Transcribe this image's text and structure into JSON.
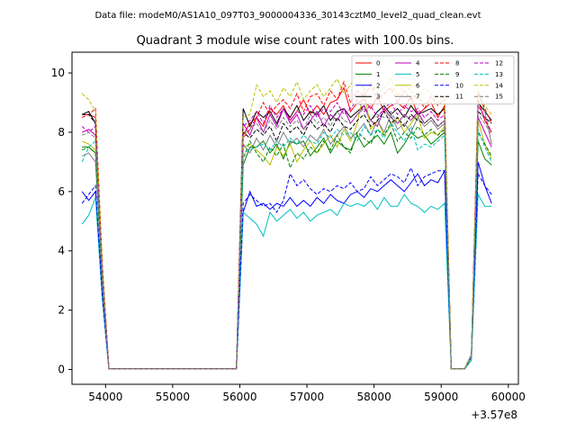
{
  "suptitle": "Data file: modeM0/AS1A10_097T03_9000004336_30143cztM0_level2_quad_clean.evt",
  "chart_data": {
    "type": "line",
    "title": "Quadrant 3 module wise count rates with 100.0s bins.",
    "xlabel": "",
    "ylabel": "",
    "offset_label": "+3.57e8",
    "xlim": [
      53500,
      60150
    ],
    "ylim": [
      -0.5,
      10.7
    ],
    "xticks": [
      54000,
      55000,
      56000,
      57000,
      58000,
      59000,
      60000
    ],
    "xtick_labels": [
      "54000",
      "55000",
      "56000",
      "57000",
      "58000",
      "59000",
      "60000"
    ],
    "yticks": [
      0,
      2,
      4,
      6,
      8,
      10
    ],
    "ytick_labels": [
      "0",
      "2",
      "4",
      "6",
      "8",
      "10"
    ],
    "legend_location": "top-right",
    "x": [
      53650,
      53750,
      53850,
      53950,
      54050,
      54150,
      54250,
      54350,
      54450,
      54550,
      54650,
      54750,
      54850,
      54950,
      55050,
      55150,
      55250,
      55350,
      55450,
      55550,
      55650,
      55750,
      55850,
      55950,
      56050,
      56150,
      56250,
      56350,
      56450,
      56550,
      56650,
      56750,
      56850,
      56950,
      57050,
      57150,
      57250,
      57350,
      57450,
      57550,
      57650,
      57750,
      57850,
      57950,
      58050,
      58150,
      58250,
      58350,
      58450,
      58550,
      58650,
      58750,
      58850,
      58950,
      59050,
      59150,
      59250,
      59350,
      59450,
      59550,
      59650,
      59750
    ],
    "series": [
      {
        "name": "0",
        "color": "#ff0000",
        "dash": "solid",
        "values": [
          8.6,
          8.6,
          8.5,
          3.5,
          0.02,
          0.02,
          0.02,
          0.02,
          0.02,
          0.02,
          0.02,
          0.02,
          0.02,
          0.02,
          0.02,
          0.02,
          0.02,
          0.02,
          0.02,
          0.02,
          0.02,
          0.02,
          0.02,
          0.02,
          7.9,
          8.3,
          8.5,
          8.2,
          8.8,
          8.6,
          8.9,
          8.4,
          8.7,
          9.1,
          8.6,
          8.9,
          8.6,
          9.0,
          9.1,
          9.5,
          8.7,
          9.0,
          9.1,
          8.8,
          9.2,
          8.7,
          8.9,
          9.0,
          8.8,
          9.2,
          8.6,
          8.8,
          9.0,
          8.5,
          8.9,
          0.02,
          0.02,
          0.02,
          0.5,
          9.1,
          8.4,
          8.0
        ]
      },
      {
        "name": "1",
        "color": "#008000",
        "dash": "solid",
        "values": [
          7.5,
          7.5,
          7.3,
          3.0,
          0.02,
          0.02,
          0.02,
          0.02,
          0.02,
          0.02,
          0.02,
          0.02,
          0.02,
          0.02,
          0.02,
          0.02,
          0.02,
          0.02,
          0.02,
          0.02,
          0.02,
          0.02,
          0.02,
          0.02,
          6.9,
          7.5,
          7.5,
          7.7,
          7.3,
          7.6,
          7.1,
          7.7,
          7.6,
          7.7,
          7.2,
          7.5,
          7.8,
          7.3,
          7.7,
          7.5,
          7.4,
          7.9,
          7.5,
          7.7,
          7.9,
          7.6,
          8.0,
          7.3,
          7.6,
          8.0,
          7.8,
          7.9,
          7.6,
          7.8,
          8.0,
          0.02,
          0.02,
          0.02,
          0.4,
          7.7,
          7.1,
          6.9
        ]
      },
      {
        "name": "2",
        "color": "#0000ff",
        "dash": "solid",
        "values": [
          6.0,
          5.7,
          6.0,
          2.5,
          0.02,
          0.02,
          0.02,
          0.02,
          0.02,
          0.02,
          0.02,
          0.02,
          0.02,
          0.02,
          0.02,
          0.02,
          0.02,
          0.02,
          0.02,
          0.02,
          0.02,
          0.02,
          0.02,
          0.02,
          5.3,
          6.0,
          5.5,
          5.6,
          5.4,
          5.6,
          5.5,
          5.8,
          5.5,
          5.7,
          5.5,
          5.8,
          5.6,
          5.9,
          5.7,
          5.6,
          5.9,
          6.0,
          5.8,
          6.1,
          6.0,
          6.2,
          6.4,
          6.2,
          6.0,
          6.3,
          6.6,
          6.2,
          6.4,
          6.3,
          6.7,
          0.02,
          0.02,
          0.02,
          0.4,
          7.0,
          6.2,
          5.6
        ]
      },
      {
        "name": "3",
        "color": "#000000",
        "dash": "solid",
        "values": [
          8.6,
          8.7,
          8.3,
          3.4,
          0.02,
          0.02,
          0.02,
          0.02,
          0.02,
          0.02,
          0.02,
          0.02,
          0.02,
          0.02,
          0.02,
          0.02,
          0.02,
          0.02,
          0.02,
          0.02,
          0.02,
          0.02,
          0.02,
          0.02,
          8.8,
          8.2,
          8.7,
          8.5,
          8.7,
          8.3,
          8.8,
          8.5,
          8.9,
          8.4,
          8.7,
          8.6,
          8.9,
          8.4,
          8.7,
          8.8,
          8.5,
          8.7,
          8.9,
          8.4,
          8.7,
          8.9,
          8.6,
          8.8,
          8.5,
          8.9,
          8.6,
          8.7,
          8.8,
          8.6,
          8.8,
          0.02,
          0.02,
          0.02,
          0.5,
          9.0,
          8.7,
          8.4
        ]
      },
      {
        "name": "4",
        "color": "#bf00bf",
        "dash": "solid",
        "values": [
          8.0,
          8.1,
          7.9,
          3.2,
          0.02,
          0.02,
          0.02,
          0.02,
          0.02,
          0.02,
          0.02,
          0.02,
          0.02,
          0.02,
          0.02,
          0.02,
          0.02,
          0.02,
          0.02,
          0.02,
          0.02,
          0.02,
          0.02,
          0.02,
          8.3,
          7.9,
          8.5,
          8.0,
          8.6,
          8.2,
          8.8,
          8.3,
          8.6,
          8.1,
          8.4,
          8.7,
          8.2,
          8.6,
          8.4,
          8.8,
          8.3,
          8.6,
          8.9,
          8.4,
          8.2,
          8.8,
          8.5,
          8.3,
          8.6,
          8.4,
          8.7,
          8.3,
          8.5,
          8.2,
          8.4,
          0.02,
          0.02,
          0.02,
          0.4,
          8.5,
          8.0,
          7.5
        ]
      },
      {
        "name": "5",
        "color": "#00bfbf",
        "dash": "solid",
        "values": [
          4.9,
          5.2,
          5.8,
          2.4,
          0.02,
          0.02,
          0.02,
          0.02,
          0.02,
          0.02,
          0.02,
          0.02,
          0.02,
          0.02,
          0.02,
          0.02,
          0.02,
          0.02,
          0.02,
          0.02,
          0.02,
          0.02,
          0.02,
          0.02,
          5.3,
          5.1,
          4.9,
          4.5,
          5.3,
          5.0,
          5.2,
          5.4,
          5.1,
          5.3,
          5.0,
          5.2,
          5.3,
          5.4,
          5.2,
          5.6,
          5.5,
          5.6,
          5.5,
          5.7,
          5.4,
          5.8,
          5.5,
          5.5,
          5.9,
          5.6,
          5.5,
          5.3,
          5.5,
          5.4,
          5.6,
          0.02,
          0.02,
          0.02,
          0.3,
          5.9,
          5.5,
          5.5
        ]
      },
      {
        "name": "6",
        "color": "#bfbf00",
        "dash": "solid",
        "values": [
          7.7,
          7.6,
          7.4,
          3.0,
          0.02,
          0.02,
          0.02,
          0.02,
          0.02,
          0.02,
          0.02,
          0.02,
          0.02,
          0.02,
          0.02,
          0.02,
          0.02,
          0.02,
          0.02,
          0.02,
          0.02,
          0.02,
          0.02,
          0.02,
          7.5,
          7.6,
          7.4,
          7.2,
          6.9,
          7.5,
          7.2,
          7.6,
          7.0,
          7.4,
          7.7,
          7.3,
          7.6,
          7.9,
          7.5,
          8.1,
          7.7,
          8.3,
          9.4,
          8.1,
          8.4,
          7.9,
          8.2,
          8.5,
          8.0,
          8.3,
          8.6,
          7.8,
          8.0,
          7.9,
          8.2,
          0.02,
          0.02,
          0.02,
          0.4,
          8.4,
          7.6,
          7.1
        ]
      },
      {
        "name": "7",
        "color": "#7f7f7f",
        "dash": "solid",
        "values": [
          7.2,
          7.3,
          7.0,
          2.9,
          0.02,
          0.02,
          0.02,
          0.02,
          0.02,
          0.02,
          0.02,
          0.02,
          0.02,
          0.02,
          0.02,
          0.02,
          0.02,
          0.02,
          0.02,
          0.02,
          0.02,
          0.02,
          0.02,
          0.02,
          7.6,
          7.3,
          7.8,
          7.4,
          7.9,
          7.5,
          8.0,
          7.6,
          7.8,
          7.5,
          7.9,
          7.7,
          8.1,
          7.6,
          7.9,
          8.2,
          7.8,
          8.0,
          8.3,
          7.9,
          8.4,
          8.0,
          8.6,
          8.1,
          8.3,
          8.0,
          8.5,
          8.2,
          8.4,
          8.1,
          8.3,
          0.02,
          0.02,
          0.02,
          0.4,
          9.4,
          8.7,
          7.6
        ]
      },
      {
        "name": "8",
        "color": "#ff0000",
        "dash": "dashed",
        "values": [
          8.5,
          8.6,
          8.8,
          3.6,
          0.02,
          0.02,
          0.02,
          0.02,
          0.02,
          0.02,
          0.02,
          0.02,
          0.02,
          0.02,
          0.02,
          0.02,
          0.02,
          0.02,
          0.02,
          0.02,
          0.02,
          0.02,
          0.02,
          0.02,
          7.8,
          8.1,
          8.5,
          9.0,
          8.6,
          8.9,
          9.1,
          8.8,
          9.3,
          8.7,
          9.2,
          9.3,
          8.9,
          9.4,
          9.1,
          9.7,
          9.0,
          9.4,
          9.2,
          9.6,
          9.1,
          9.3,
          9.5,
          9.0,
          9.4,
          9.1,
          9.3,
          8.8,
          9.2,
          8.9,
          9.1,
          0.02,
          0.02,
          0.02,
          0.5,
          9.3,
          8.8,
          8.3
        ]
      },
      {
        "name": "9",
        "color": "#008000",
        "dash": "dashed",
        "values": [
          7.4,
          7.5,
          7.3,
          3.0,
          0.02,
          0.02,
          0.02,
          0.02,
          0.02,
          0.02,
          0.02,
          0.02,
          0.02,
          0.02,
          0.02,
          0.02,
          0.02,
          0.02,
          0.02,
          0.02,
          0.02,
          0.02,
          0.02,
          0.02,
          7.1,
          7.7,
          7.3,
          7.0,
          7.5,
          7.2,
          7.6,
          6.8,
          7.3,
          7.1,
          7.5,
          7.3,
          7.7,
          7.4,
          7.9,
          7.5,
          7.3,
          8.0,
          7.8,
          7.6,
          8.1,
          7.9,
          8.3,
          7.7,
          8.0,
          7.8,
          8.2,
          7.9,
          8.1,
          7.9,
          8.1,
          0.02,
          0.02,
          0.02,
          0.4,
          8.0,
          7.6,
          7.2
        ]
      },
      {
        "name": "10",
        "color": "#0000ff",
        "dash": "dashed",
        "values": [
          5.6,
          5.9,
          6.2,
          2.5,
          0.02,
          0.02,
          0.02,
          0.02,
          0.02,
          0.02,
          0.02,
          0.02,
          0.02,
          0.02,
          0.02,
          0.02,
          0.02,
          0.02,
          0.02,
          0.02,
          0.02,
          0.02,
          0.02,
          0.02,
          5.6,
          5.9,
          5.7,
          5.5,
          5.6,
          5.3,
          5.7,
          6.6,
          6.2,
          6.4,
          6.1,
          5.9,
          6.1,
          6.0,
          6.2,
          6.1,
          6.3,
          6.0,
          6.1,
          6.5,
          6.2,
          6.4,
          6.6,
          6.5,
          6.3,
          6.8,
          6.2,
          6.5,
          6.6,
          6.7,
          6.7,
          0.02,
          0.02,
          0.02,
          0.4,
          6.6,
          6.2,
          5.9
        ]
      },
      {
        "name": "11",
        "color": "#000000",
        "dash": "dashed",
        "values": [
          8.6,
          8.6,
          8.3,
          3.4,
          0.02,
          0.02,
          0.02,
          0.02,
          0.02,
          0.02,
          0.02,
          0.02,
          0.02,
          0.02,
          0.02,
          0.02,
          0.02,
          0.02,
          0.02,
          0.02,
          0.02,
          0.02,
          0.02,
          0.02,
          8.0,
          7.8,
          8.1,
          7.9,
          8.2,
          7.7,
          8.3,
          8.0,
          8.2,
          7.9,
          8.4,
          8.1,
          8.3,
          8.0,
          8.5,
          8.2,
          8.1,
          8.4,
          8.6,
          8.2,
          8.4,
          8.7,
          8.3,
          8.5,
          8.2,
          8.6,
          8.4,
          8.3,
          8.5,
          8.2,
          8.4,
          0.02,
          0.02,
          0.02,
          0.5,
          8.7,
          8.5,
          8.3
        ]
      },
      {
        "name": "12",
        "color": "#bf00bf",
        "dash": "dashed",
        "values": [
          8.2,
          8.0,
          8.2,
          3.3,
          0.02,
          0.02,
          0.02,
          0.02,
          0.02,
          0.02,
          0.02,
          0.02,
          0.02,
          0.02,
          0.02,
          0.02,
          0.02,
          0.02,
          0.02,
          0.02,
          0.02,
          0.02,
          0.02,
          0.02,
          8.2,
          8.4,
          8.7,
          8.3,
          8.9,
          8.5,
          8.8,
          8.4,
          8.7,
          8.6,
          8.9,
          8.5,
          8.8,
          8.7,
          9.0,
          8.6,
          8.8,
          9.1,
          8.7,
          8.9,
          8.5,
          8.8,
          9.0,
          8.6,
          8.9,
          8.7,
          8.8,
          8.5,
          8.7,
          8.4,
          8.6,
          0.02,
          0.02,
          0.02,
          0.5,
          8.9,
          8.5,
          8.0
        ]
      },
      {
        "name": "13",
        "color": "#00bfbf",
        "dash": "dashed",
        "values": [
          7.0,
          7.5,
          7.7,
          3.1,
          0.02,
          0.02,
          0.02,
          0.02,
          0.02,
          0.02,
          0.02,
          0.02,
          0.02,
          0.02,
          0.02,
          0.02,
          0.02,
          0.02,
          0.02,
          0.02,
          0.02,
          0.02,
          0.02,
          0.02,
          7.3,
          7.4,
          7.5,
          7.6,
          7.4,
          7.7,
          7.5,
          7.8,
          7.6,
          7.9,
          7.7,
          7.6,
          8.0,
          7.8,
          8.1,
          7.9,
          8.0,
          7.7,
          8.2,
          7.9,
          8.1,
          7.8,
          8.3,
          8.0,
          7.7,
          8.2,
          7.4,
          7.6,
          7.5,
          7.7,
          7.9,
          0.02,
          0.02,
          0.02,
          0.4,
          8.1,
          7.5,
          7.0
        ]
      },
      {
        "name": "14",
        "color": "#bfbf00",
        "dash": "dashed",
        "values": [
          9.3,
          9.1,
          8.7,
          3.6,
          0.02,
          0.02,
          0.02,
          0.02,
          0.02,
          0.02,
          0.02,
          0.02,
          0.02,
          0.02,
          0.02,
          0.02,
          0.02,
          0.02,
          0.02,
          0.02,
          0.02,
          0.02,
          0.02,
          0.02,
          8.5,
          8.6,
          9.6,
          9.2,
          9.4,
          9.0,
          9.5,
          9.2,
          9.7,
          9.1,
          9.4,
          9.6,
          9.2,
          9.5,
          9.8,
          9.3,
          9.6,
          10.0,
          9.4,
          9.7,
          9.3,
          9.5,
          9.8,
          9.2,
          9.6,
          9.4,
          9.1,
          9.5,
          9.3,
          9.0,
          9.2,
          0.02,
          0.02,
          0.02,
          0.5,
          9.4,
          8.9,
          8.6
        ]
      },
      {
        "name": "15",
        "color": "#7f7f7f",
        "dash": "dashed",
        "values": [
          7.9,
          8.0,
          7.8,
          3.2,
          0.02,
          0.02,
          0.02,
          0.02,
          0.02,
          0.02,
          0.02,
          0.02,
          0.02,
          0.02,
          0.02,
          0.02,
          0.02,
          0.02,
          0.02,
          0.02,
          0.02,
          0.02,
          0.02,
          0.02,
          7.9,
          8.1,
          8.3,
          8.0,
          8.4,
          8.1,
          8.5,
          8.2,
          8.4,
          8.1,
          8.6,
          8.3,
          8.5,
          8.2,
          8.7,
          8.4,
          8.3,
          8.6,
          8.8,
          8.4,
          8.6,
          8.5,
          8.7,
          8.3,
          8.6,
          8.4,
          8.6,
          8.3,
          8.5,
          8.2,
          8.4,
          0.02,
          0.02,
          0.02,
          0.5,
          8.6,
          8.3,
          7.9
        ]
      }
    ]
  }
}
